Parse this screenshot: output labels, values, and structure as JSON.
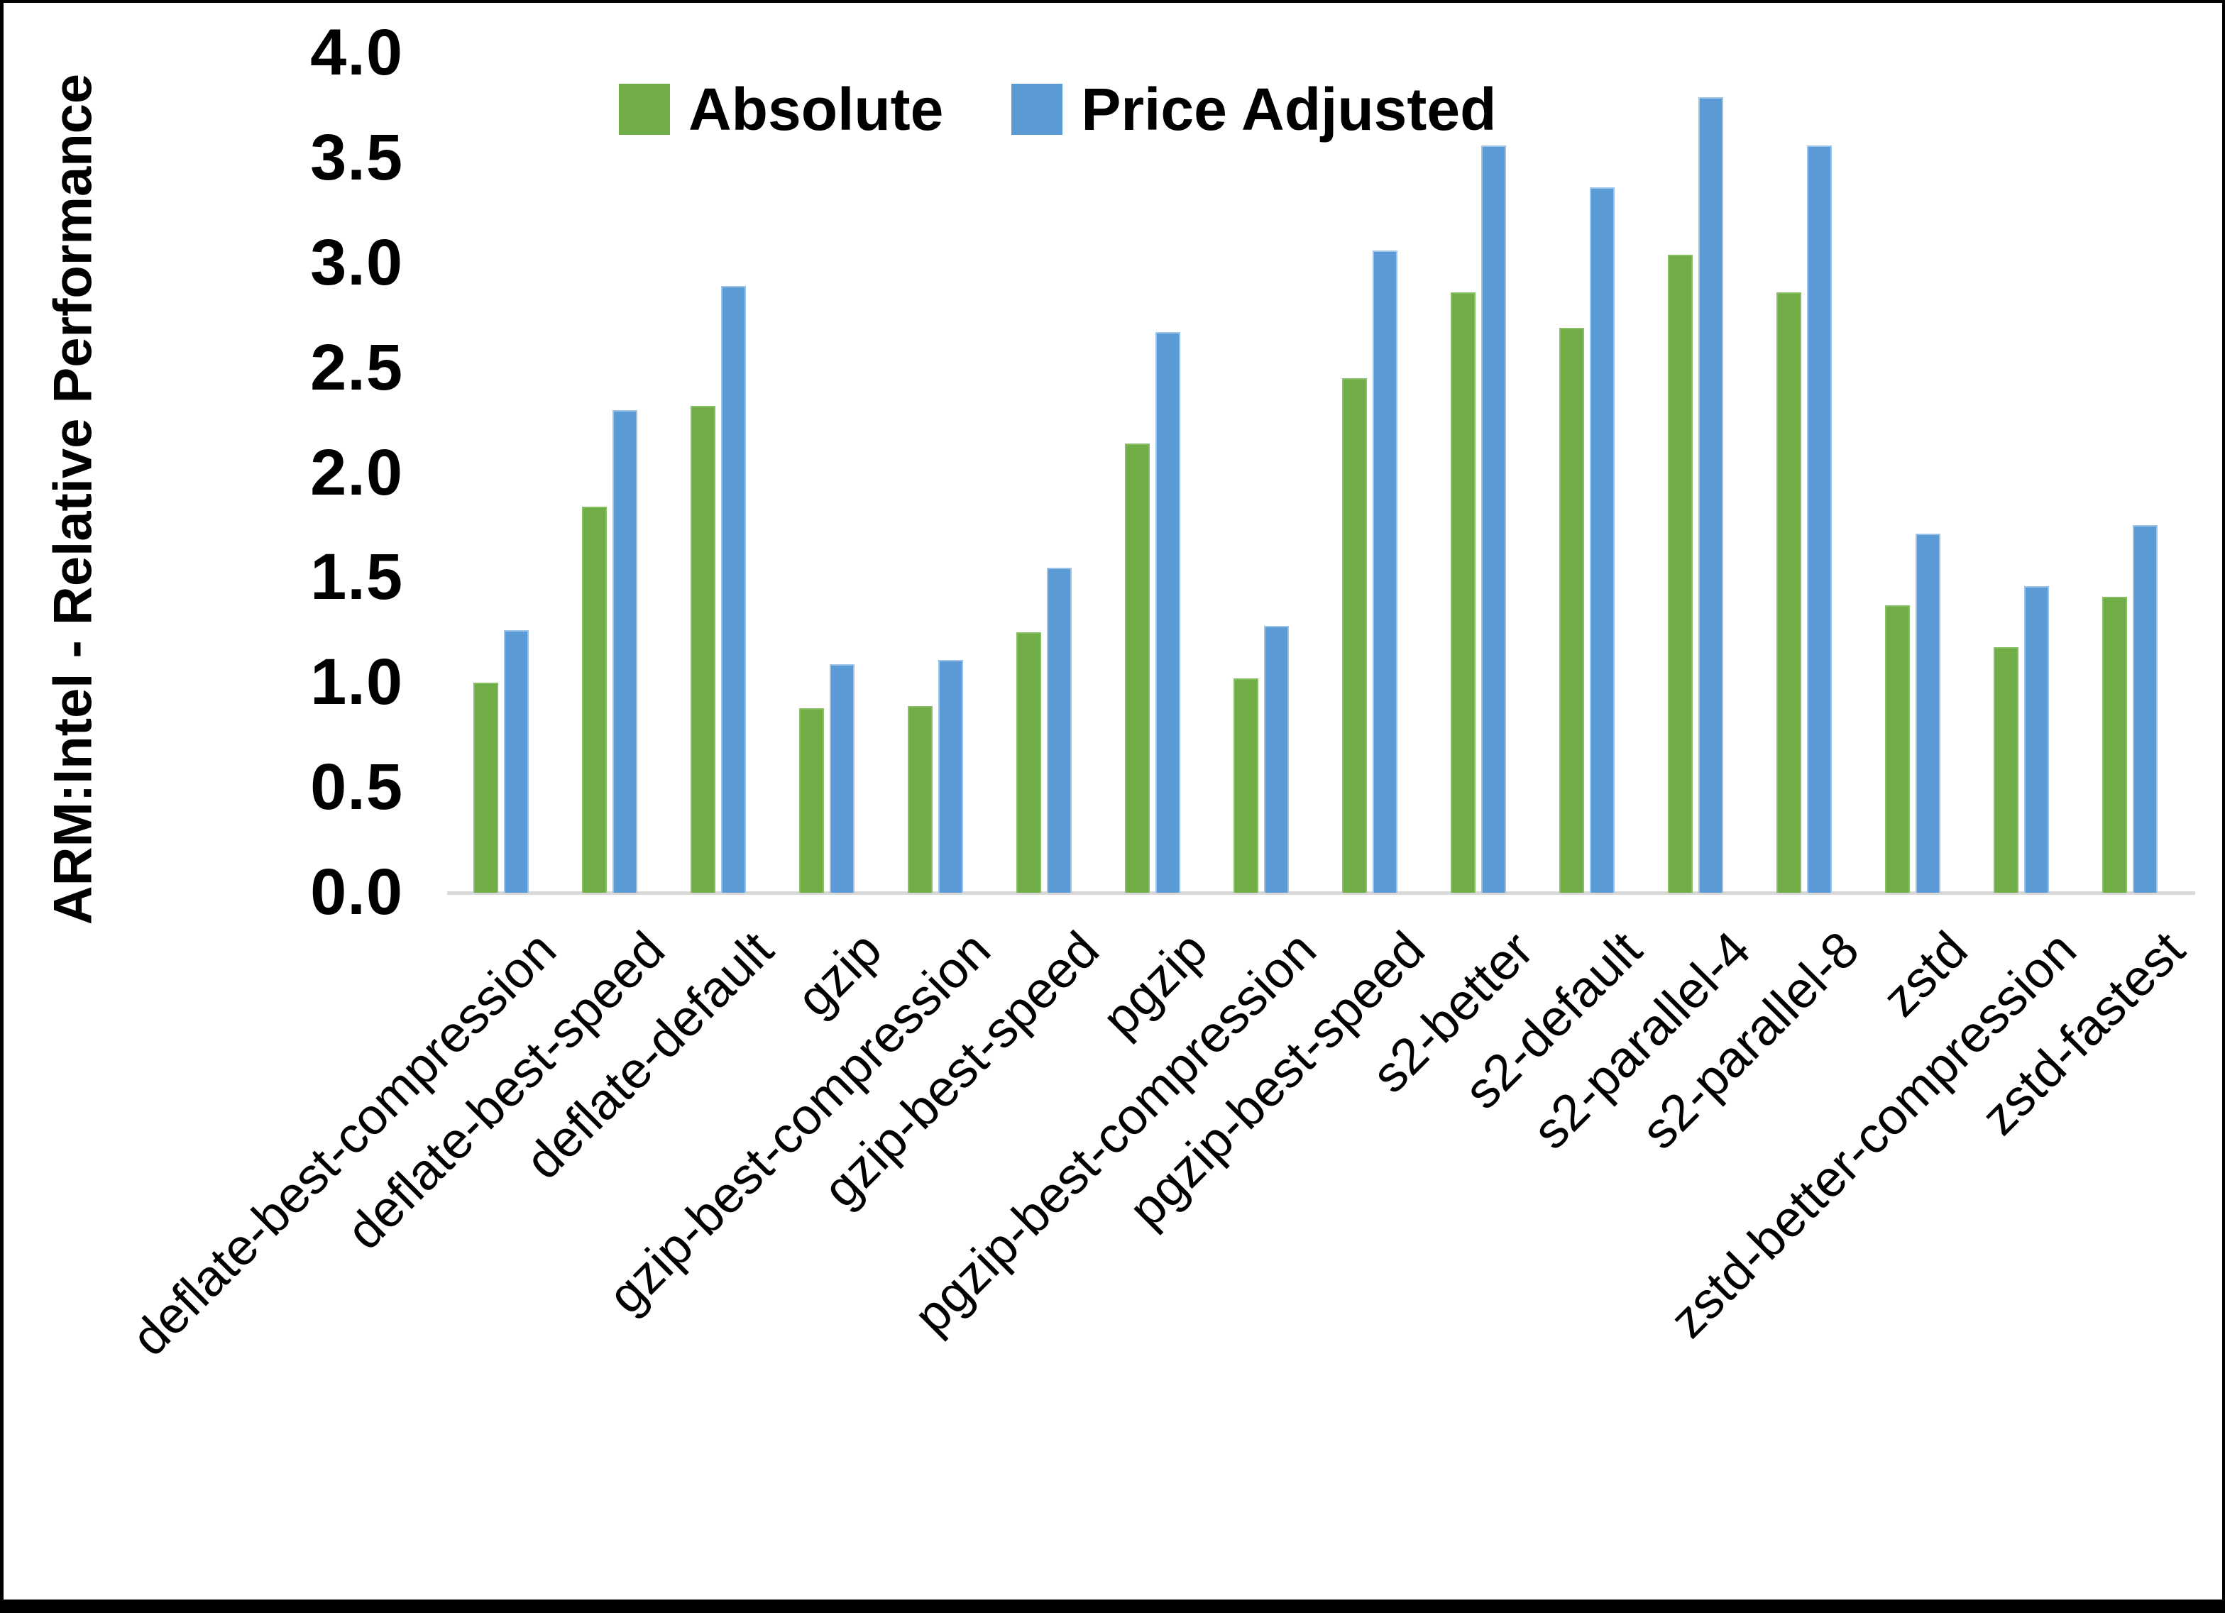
{
  "legend": {
    "items": [
      {
        "label": "Absolute"
      },
      {
        "label": "Price Adjusted"
      }
    ]
  },
  "y_axis": {
    "title": "ARM:Intel - Relative Performance",
    "tick_labels": [
      "0.0",
      "0.5",
      "1.0",
      "1.5",
      "2.0",
      "2.5",
      "3.0",
      "3.5",
      "4.0"
    ]
  },
  "colors": {
    "absolute_fill": "#70AD47",
    "absolute_edge": "#87BE66",
    "price_adjusted_fill": "#5B9BD5",
    "price_adjusted_edge": "#9DC3E6",
    "axis_line": "#D9D9D9",
    "frame": "#000000"
  },
  "chart_data": {
    "type": "bar",
    "title": "",
    "xlabel": "",
    "ylabel": "ARM:Intel - Relative Performance",
    "ylim": [
      0,
      4.0
    ],
    "ytick_step": 0.5,
    "grid": false,
    "legend_position": "top-center",
    "categories": [
      "deflate-best-compression",
      "deflate-best-speed",
      "deflate-default",
      "gzip",
      "gzip-best-compression",
      "gzip-best-speed",
      "pgzip",
      "pgzip-best-compression",
      "pgzip-best-speed",
      "s2-better",
      "s2-default",
      "s2-parallel-4",
      "s2-parallel-8",
      "zstd",
      "zstd-better-compression",
      "zstd-fastest"
    ],
    "series": [
      {
        "name": "Absolute",
        "color": "#70AD47",
        "values": [
          1.0,
          1.84,
          2.32,
          0.88,
          0.89,
          1.24,
          2.14,
          1.02,
          2.45,
          2.86,
          2.69,
          3.04,
          2.86,
          1.37,
          1.17,
          1.41
        ]
      },
      {
        "name": "Price Adjusted",
        "color": "#5B9BD5",
        "values": [
          1.25,
          2.3,
          2.89,
          1.09,
          1.11,
          1.55,
          2.67,
          1.27,
          3.06,
          3.56,
          3.36,
          3.79,
          3.56,
          1.71,
          1.46,
          1.75
        ]
      }
    ]
  }
}
